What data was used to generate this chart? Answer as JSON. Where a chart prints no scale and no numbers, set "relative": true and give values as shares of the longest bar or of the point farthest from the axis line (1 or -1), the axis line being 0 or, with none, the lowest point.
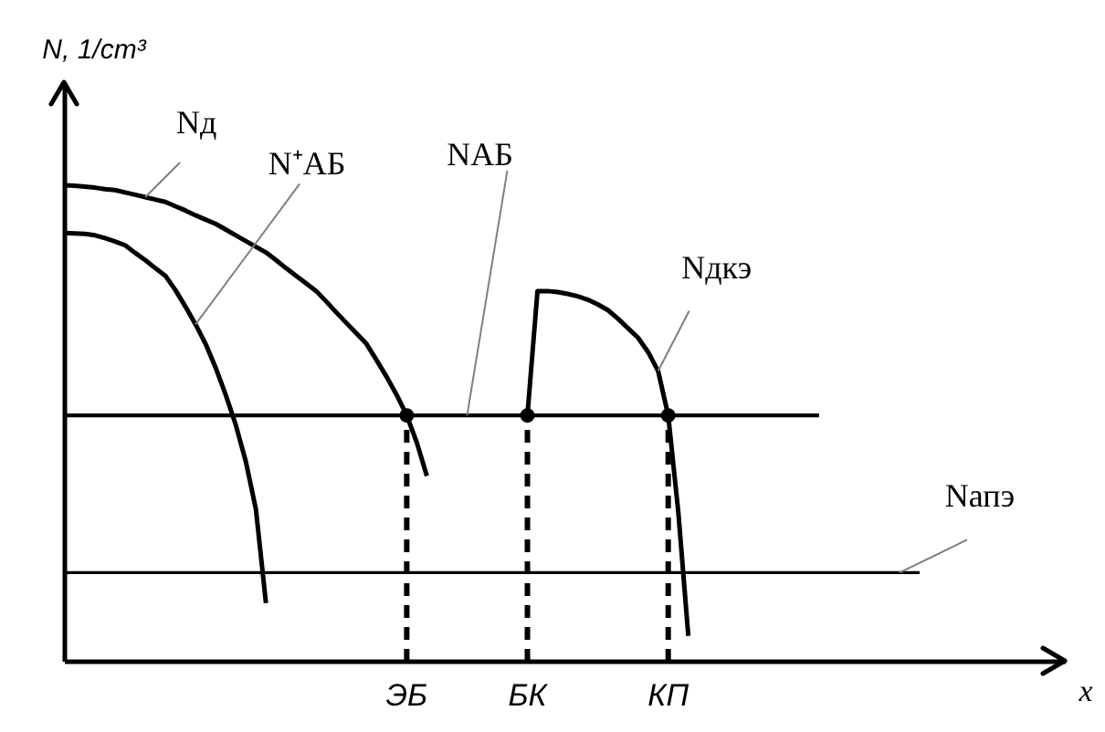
{
  "chart_data": {
    "type": "line",
    "relative": true,
    "xlabel": "x",
    "ylabel": "N, 1/cm³",
    "line_style": "solid",
    "categories": [
      null,
      null,
      null,
      null,
      null,
      null,
      null,
      null,
      null,
      null,
      null,
      null,
      null,
      null,
      null,
      null,
      null,
      null,
      null,
      null,
      null,
      null,
      null,
      null,
      null,
      null,
      null,
      null,
      null,
      null,
      null,
      null,
      null,
      null,
      "ЭБ",
      null,
      null,
      null,
      null,
      null,
      null,
      null,
      null,
      null,
      null,
      null,
      "БК",
      null,
      null,
      null,
      null,
      null,
      null,
      null,
      null,
      null,
      null,
      null,
      null,
      null,
      "КП",
      null,
      null,
      null,
      null,
      null,
      null,
      null,
      null,
      null,
      null,
      null,
      null,
      null,
      null,
      null,
      null,
      null,
      null,
      null,
      null,
      null,
      null,
      null,
      null,
      null
    ],
    "series": [
      {
        "name": "Nд",
        "color": "#000000",
        "values": [
          1.0,
          0.999,
          0.997,
          0.995,
          0.992,
          0.99,
          0.985,
          0.98,
          0.975,
          0.97,
          0.965,
          0.956,
          0.947,
          0.937,
          0.928,
          0.919,
          0.907,
          0.895,
          0.883,
          0.871,
          0.859,
          0.843,
          0.826,
          0.81,
          0.794,
          0.778,
          0.756,
          0.733,
          0.711,
          0.689,
          0.667,
          0.633,
          0.598,
          0.56,
          0.517,
          0.46,
          0.39,
          null,
          null,
          null,
          null,
          null,
          null,
          null,
          null,
          null,
          null,
          null,
          null,
          null,
          null,
          null,
          null,
          null,
          null,
          null,
          null,
          null,
          null,
          null,
          null,
          null,
          null,
          null,
          null,
          null,
          null,
          null,
          null,
          null,
          null,
          null,
          null,
          null,
          null,
          null,
          null,
          null,
          null,
          null,
          null,
          null,
          null,
          null,
          null,
          null
        ]
      },
      {
        "name": "N⁺АБ",
        "color": "#000000",
        "values": [
          0.9,
          0.899,
          0.898,
          0.895,
          0.889,
          0.882,
          0.874,
          0.858,
          0.843,
          0.826,
          0.81,
          0.78,
          0.745,
          0.708,
          0.667,
          0.617,
          0.56,
          0.497,
          0.42,
          0.32,
          0.123,
          null,
          null,
          null,
          null,
          null,
          null,
          null,
          null,
          null,
          null,
          null,
          null,
          null,
          null,
          null,
          null,
          null,
          null,
          null,
          null,
          null,
          null,
          null,
          null,
          null,
          null,
          null,
          null,
          null,
          null,
          null,
          null,
          null,
          null,
          null,
          null,
          null,
          null,
          null,
          null,
          null,
          null,
          null,
          null,
          null,
          null,
          null,
          null,
          null,
          null,
          null,
          null,
          null,
          null,
          null,
          null,
          null,
          null,
          null,
          null,
          null,
          null,
          null,
          null,
          null
        ]
      },
      {
        "name": "NАБ",
        "color": "#000000",
        "values": [
          0.517,
          0.517,
          0.517,
          0.517,
          0.517,
          0.517,
          0.517,
          0.517,
          0.517,
          0.517,
          0.517,
          0.517,
          0.517,
          0.517,
          0.517,
          0.517,
          0.517,
          0.517,
          0.517,
          0.517,
          0.517,
          0.517,
          0.517,
          0.517,
          0.517,
          0.517,
          0.517,
          0.517,
          0.517,
          0.517,
          0.517,
          0.517,
          0.517,
          0.517,
          0.517,
          0.517,
          0.517,
          0.517,
          0.517,
          0.517,
          0.517,
          0.517,
          0.517,
          0.517,
          0.517,
          0.517,
          0.517,
          0.517,
          0.517,
          0.517,
          0.517,
          0.517,
          0.517,
          0.517,
          0.517,
          0.517,
          0.517,
          0.517,
          0.517,
          0.517,
          0.517,
          0.517,
          0.517,
          0.517,
          0.517,
          0.517,
          0.517,
          0.517,
          0.517,
          0.517,
          0.517,
          0.517,
          0.517,
          0.517,
          0.517,
          0.517,
          null,
          null,
          null,
          null,
          null,
          null,
          null,
          null,
          null,
          null
        ]
      },
      {
        "name": "Nдкэ",
        "color": "#000000",
        "values": [
          null,
          null,
          null,
          null,
          null,
          null,
          null,
          null,
          null,
          null,
          null,
          null,
          null,
          null,
          null,
          null,
          null,
          null,
          null,
          null,
          null,
          null,
          null,
          null,
          null,
          null,
          null,
          null,
          null,
          null,
          null,
          null,
          null,
          null,
          null,
          null,
          null,
          null,
          null,
          null,
          null,
          null,
          null,
          null,
          null,
          null,
          0.517,
          0.778,
          0.778,
          0.776,
          0.772,
          0.767,
          0.76,
          0.75,
          0.738,
          0.72,
          0.7,
          0.68,
          0.65,
          0.61,
          0.517,
          0.315,
          0.054,
          null,
          null,
          null,
          null,
          null,
          null,
          null,
          null,
          null,
          null,
          null,
          null,
          null,
          null,
          null,
          null,
          null,
          null,
          null,
          null,
          null,
          null,
          null
        ]
      },
      {
        "name": "Nапэ",
        "color": "#000000",
        "values": [
          0.187,
          0.187,
          0.187,
          0.187,
          0.187,
          0.187,
          0.187,
          0.187,
          0.187,
          0.187,
          0.187,
          0.187,
          0.187,
          0.187,
          0.187,
          0.187,
          0.187,
          0.187,
          0.187,
          0.187,
          0.187,
          0.187,
          0.187,
          0.187,
          0.187,
          0.187,
          0.187,
          0.187,
          0.187,
          0.187,
          0.187,
          0.187,
          0.187,
          0.187,
          0.187,
          0.187,
          0.187,
          0.187,
          0.187,
          0.187,
          0.187,
          0.187,
          0.187,
          0.187,
          0.187,
          0.187,
          0.187,
          0.187,
          0.187,
          0.187,
          0.187,
          0.187,
          0.187,
          0.187,
          0.187,
          0.187,
          0.187,
          0.187,
          0.187,
          0.187,
          0.187,
          0.187,
          0.187,
          0.187,
          0.187,
          0.187,
          0.187,
          0.187,
          0.187,
          0.187,
          0.187,
          0.187,
          0.187,
          0.187,
          0.187,
          0.187,
          0.187,
          0.187,
          0.187,
          0.187,
          0.187,
          0.187,
          0.187,
          0.187,
          0.187,
          0.187
        ]
      },
      {
        "type": "lollipop",
        "line_style": "dashed",
        "marker": "circle",
        "color": "#000000",
        "values": [
          null,
          null,
          null,
          null,
          null,
          null,
          null,
          null,
          null,
          null,
          null,
          null,
          null,
          null,
          null,
          null,
          null,
          null,
          null,
          null,
          null,
          null,
          null,
          null,
          null,
          null,
          null,
          null,
          null,
          null,
          null,
          null,
          null,
          null,
          0.517,
          null,
          null,
          null,
          null,
          null,
          null,
          null,
          null,
          null,
          null,
          null,
          0.517,
          null,
          null,
          null,
          null,
          null,
          null,
          null,
          null,
          null,
          null,
          null,
          null,
          null,
          0.517,
          null,
          null,
          null,
          null,
          null,
          null,
          null,
          null,
          null,
          null,
          null,
          null,
          null,
          null,
          null,
          null,
          null,
          null,
          null,
          null,
          null,
          null,
          null,
          null,
          null
        ]
      }
    ]
  }
}
